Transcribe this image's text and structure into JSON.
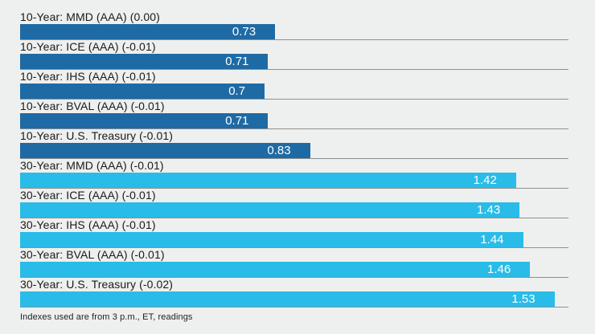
{
  "colors": {
    "background": "#eef0ef",
    "ten_year_bar": "#1e6aa4",
    "thirty_year_bar": "#29bce8",
    "separator_line": "#8f8f8f",
    "label_text": "#1a1a1a",
    "value_text": "#ffffff"
  },
  "chart_data": {
    "type": "bar",
    "orientation": "horizontal",
    "xlim": [
      0,
      1.57
    ],
    "grid": "row-separator-lines",
    "legend": "none",
    "rows": [
      {
        "label": "10-Year: MMD (AAA) (0.00)",
        "value": 0.73,
        "display": "0.73",
        "series": "10-Year",
        "color": "#1e6aa4"
      },
      {
        "label": "10-Year: ICE (AAA) (-0.01)",
        "value": 0.71,
        "display": "0.71",
        "series": "10-Year",
        "color": "#1e6aa4"
      },
      {
        "label": "10-Year: IHS (AAA) (-0.01)",
        "value": 0.7,
        "display": "0.7",
        "series": "10-Year",
        "color": "#1e6aa4"
      },
      {
        "label": "10-Year: BVAL (AAA) (-0.01)",
        "value": 0.71,
        "display": "0.71",
        "series": "10-Year",
        "color": "#1e6aa4"
      },
      {
        "label": "10-Year: U.S. Treasury (-0.01)",
        "value": 0.83,
        "display": "0.83",
        "series": "10-Year",
        "color": "#1e6aa4"
      },
      {
        "label": "30-Year: MMD (AAA) (-0.01)",
        "value": 1.42,
        "display": "1.42",
        "series": "30-Year",
        "color": "#29bce8"
      },
      {
        "label": "30-Year: ICE (AAA) (-0.01)",
        "value": 1.43,
        "display": "1.43",
        "series": "30-Year",
        "color": "#29bce8"
      },
      {
        "label": "30-Year: IHS (AAA) (-0.01)",
        "value": 1.44,
        "display": "1.44",
        "series": "30-Year",
        "color": "#29bce8"
      },
      {
        "label": "30-Year: BVAL (AAA) (-0.01)",
        "value": 1.46,
        "display": "1.46",
        "series": "30-Year",
        "color": "#29bce8"
      },
      {
        "label": "30-Year: U.S. Treasury (-0.02)",
        "value": 1.53,
        "display": "1.53",
        "series": "30-Year",
        "color": "#29bce8"
      }
    ],
    "footnote": "Indexes used are from 3 p.m., ET, readings"
  }
}
